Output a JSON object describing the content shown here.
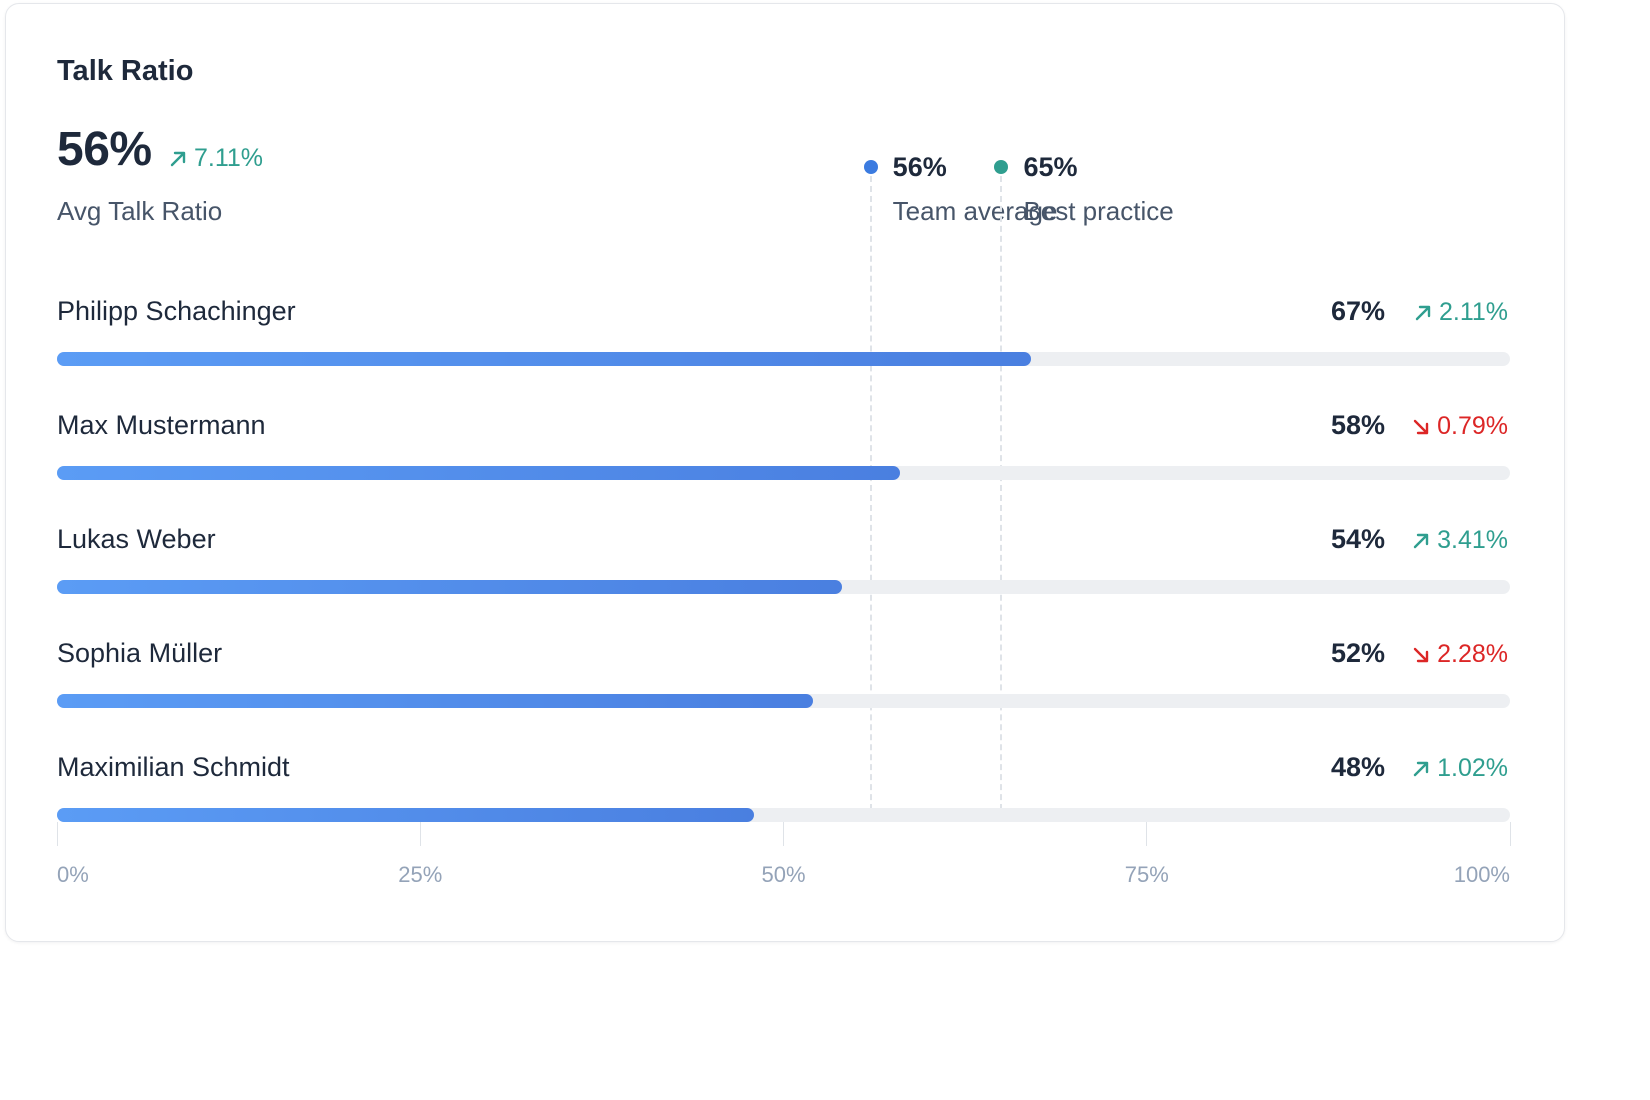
{
  "card": {
    "title": "Talk Ratio",
    "kpi": {
      "value": "56%",
      "delta": "7.11%",
      "delta_direction": "up",
      "label": "Avg Talk Ratio"
    }
  },
  "colors": {
    "up": "#2f9e8f",
    "down": "#dc2626",
    "bar": "#4f87e8",
    "team_average": "#3b7be0",
    "best_practice": "#2f9e8f"
  },
  "chart_data": {
    "type": "bar",
    "orientation": "horizontal",
    "title": "Talk Ratio",
    "categories": [
      "Philipp Schachinger",
      "Max Mustermann",
      "Lukas Weber",
      "Sophia Müller",
      "Maximilian Schmidt"
    ],
    "values": [
      67,
      58,
      54,
      52,
      48
    ],
    "value_labels": [
      "67%",
      "58%",
      "54%",
      "52%",
      "48%"
    ],
    "deltas": [
      {
        "text": "2.11%",
        "direction": "up"
      },
      {
        "text": "0.79%",
        "direction": "down"
      },
      {
        "text": "3.41%",
        "direction": "up"
      },
      {
        "text": "2.28%",
        "direction": "down"
      },
      {
        "text": "1.02%",
        "direction": "up"
      }
    ],
    "reference_lines": [
      {
        "value": 56,
        "value_label": "56%",
        "label": "Team average",
        "color": "#3b7be0"
      },
      {
        "value": 65,
        "value_label": "65%",
        "label": "Best practice",
        "color": "#2f9e8f"
      }
    ],
    "x_axis": {
      "ticks": [
        0,
        25,
        50,
        75,
        100
      ],
      "tick_labels": [
        "0%",
        "25%",
        "50%",
        "75%",
        "100%"
      ]
    },
    "xlim": [
      0,
      100
    ],
    "grid": false
  }
}
